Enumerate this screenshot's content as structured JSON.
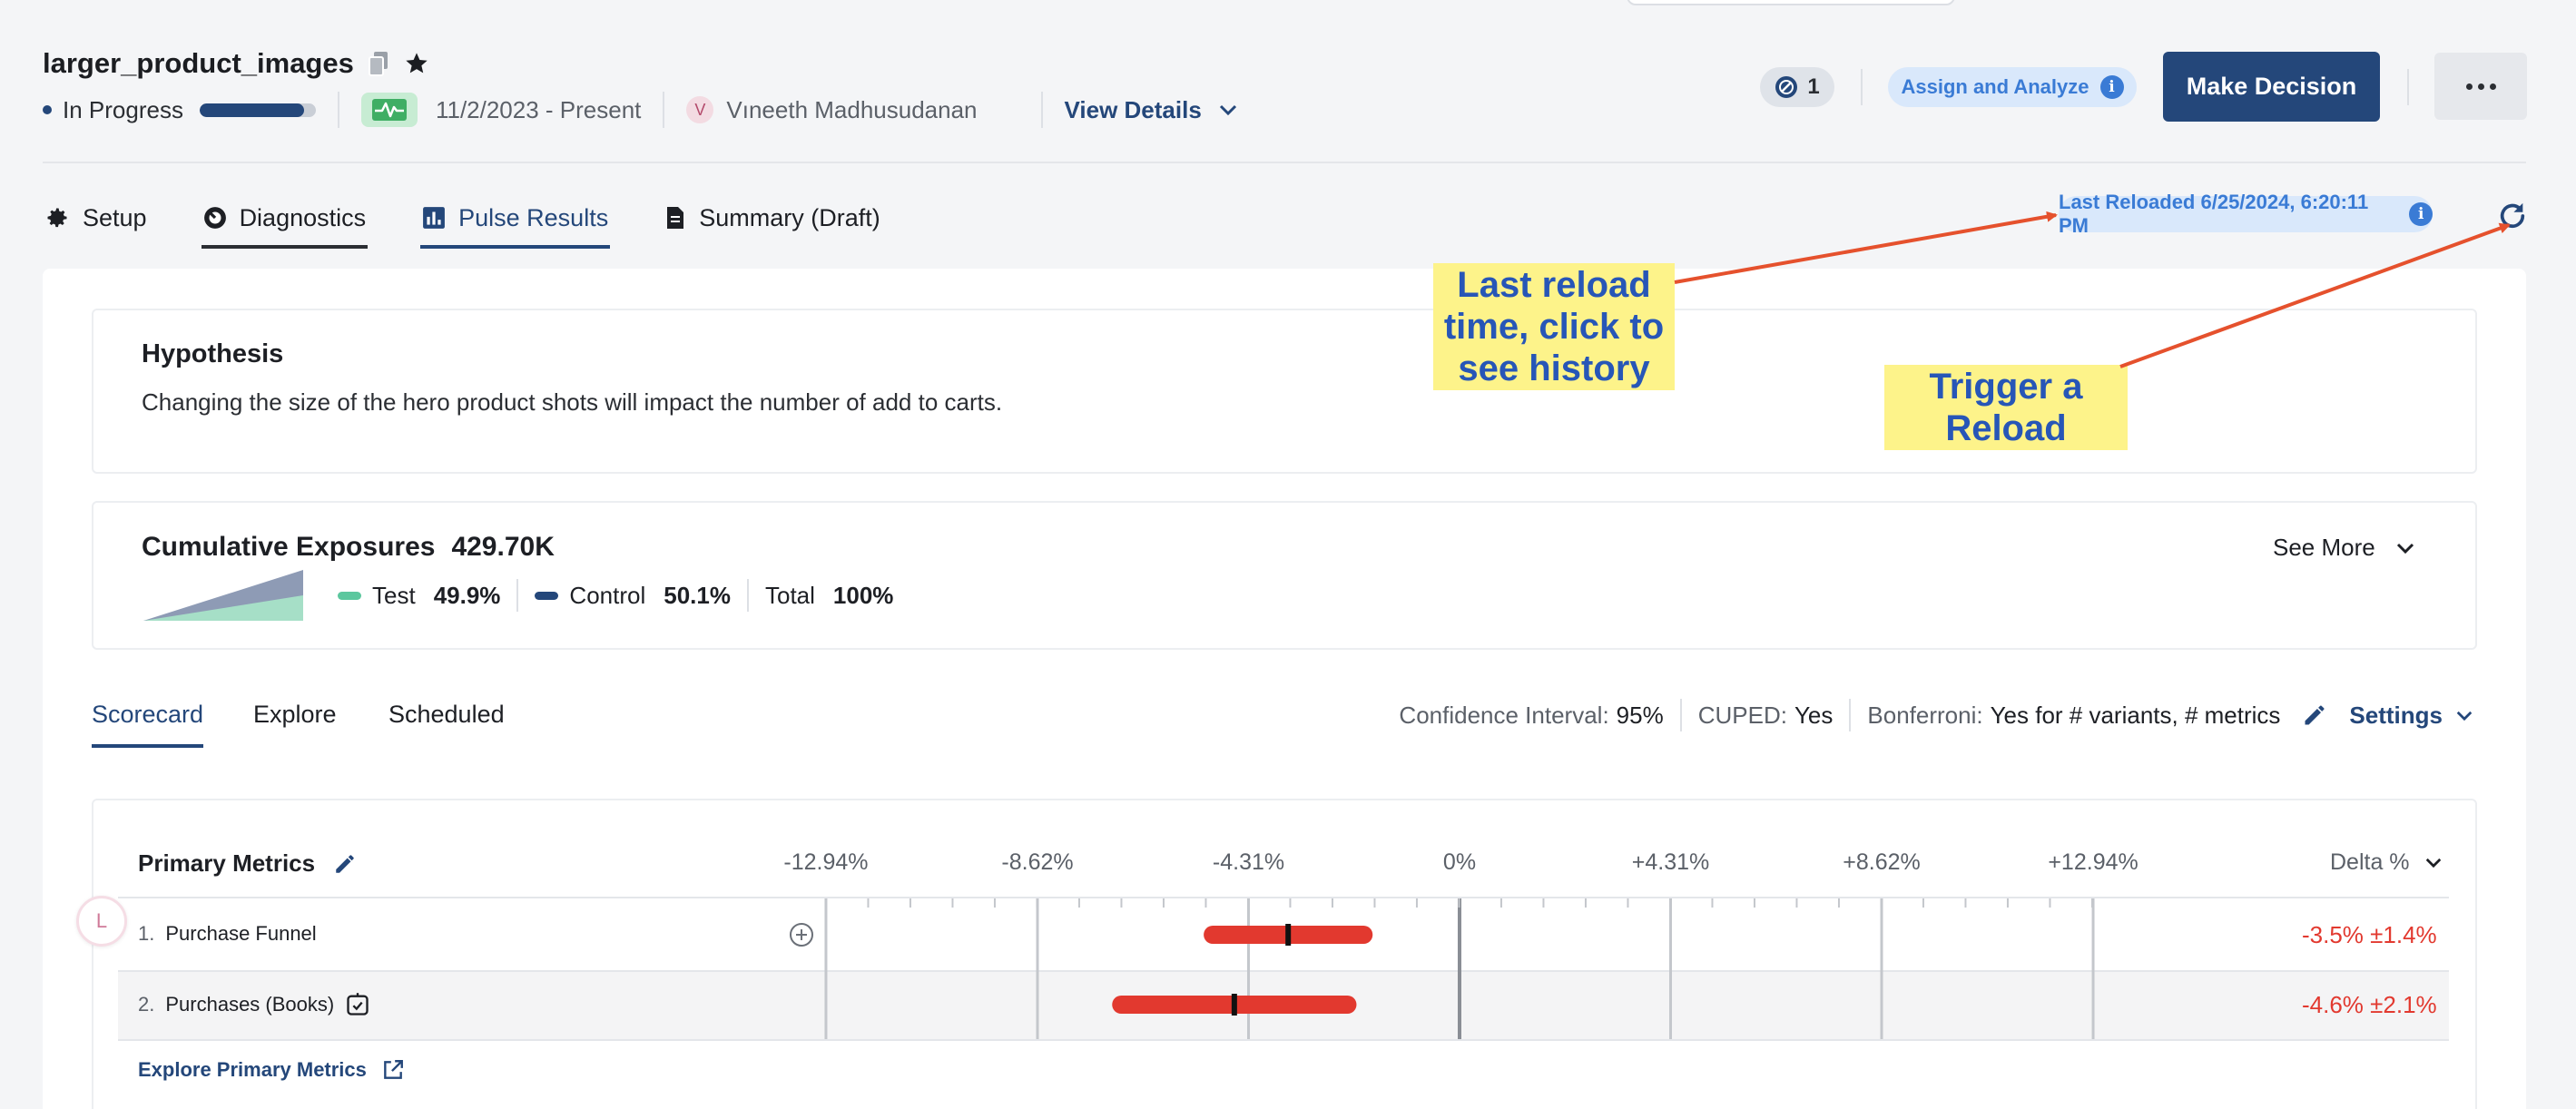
{
  "header": {
    "title": "larger_product_images",
    "status": "In Progress",
    "progress": 0.9,
    "date_range": "11/2/2023 - Present",
    "owner_initial": "V",
    "owner_name": "Vıneeth Madhusudanan",
    "view_details": "View Details",
    "badge_count": "1",
    "assign_label": "Assign and Analyze",
    "make_decision": "Make Decision"
  },
  "tabs": [
    {
      "label": "Setup",
      "icon": "gear-icon"
    },
    {
      "label": "Diagnostics",
      "icon": "gauge-icon"
    },
    {
      "label": "Pulse Results",
      "icon": "bar-chart-icon"
    },
    {
      "label": "Summary (Draft)",
      "icon": "document-icon"
    }
  ],
  "reload": {
    "last_reloaded": "Last Reloaded 6/25/2024, 6:20:11 PM"
  },
  "hypothesis": {
    "title": "Hypothesis",
    "text": "Changing the size of the hero product shots will impact the number of add to carts."
  },
  "exposures": {
    "title": "Cumulative Exposures",
    "total_value": "429.70K",
    "test_label": "Test",
    "test_pct": "49.9%",
    "control_label": "Control",
    "control_pct": "50.1%",
    "total_label": "Total",
    "total_pct": "100%",
    "see_more": "See More",
    "test_color": "#5cc79e",
    "control_color": "#24477a"
  },
  "subtabs": [
    "Scorecard",
    "Explore",
    "Scheduled"
  ],
  "settings": {
    "ci_label": "Confidence Interval:",
    "ci_value": "95%",
    "cuped_label": "CUPED:",
    "cuped_value": "Yes",
    "bonf_label": "Bonferroni:",
    "bonf_value": "Yes for # variants, # metrics",
    "settings_link": "Settings"
  },
  "scorecard": {
    "title": "Primary Metrics",
    "ticks": [
      "-12.94%",
      "-8.62%",
      "-4.31%",
      "0%",
      "+4.31%",
      "+8.62%",
      "+12.94%"
    ],
    "tick_values": [
      -12.94,
      -8.62,
      -4.31,
      0,
      4.31,
      8.62,
      12.94
    ],
    "delta_header": "Delta %",
    "metrics": [
      {
        "num": "1.",
        "name": "Purchase Funnel",
        "delta": "-3.5% ±1.4%",
        "center": -3.5,
        "ci": 1.4
      },
      {
        "num": "2.",
        "name": "Purchases (Books)",
        "delta": "-4.6% ±2.1%",
        "center": -4.6,
        "ci": 2.1
      }
    ],
    "explore_link": "Explore Primary Metrics",
    "negative_color": "#e2392f",
    "row_avatar_initial": "L"
  },
  "annotations": {
    "reload_time_note": "Last reload time, click to see history",
    "trigger_note": "Trigger a Reload"
  }
}
